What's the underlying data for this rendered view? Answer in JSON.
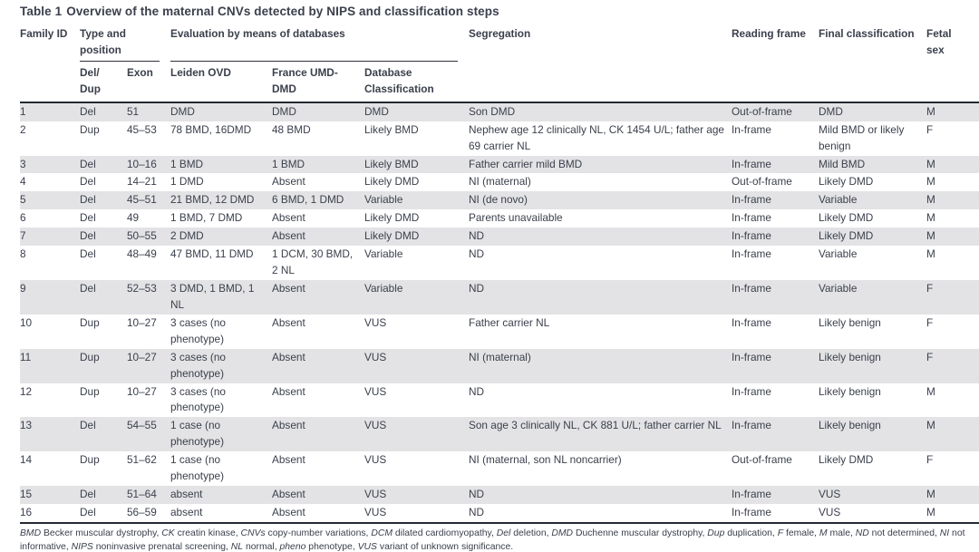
{
  "title": {
    "label": "Table 1",
    "text": "Overview of the maternal CNVs detected by NIPS and classification steps"
  },
  "columns": {
    "family_id": "Family ID",
    "type_position": "Type and position",
    "evaluation": "Evaluation by means of databases",
    "segregation": "Segregation",
    "reading_frame": "Reading frame",
    "final_classification": "Final classification",
    "fetal_sex": "Fetal sex",
    "del_dup": "Del/ Dup",
    "exon": "Exon",
    "leiden_ovd": "Leiden OVD",
    "france_umd": "France UMD-DMD",
    "db_classification": "Database Classification"
  },
  "rows": [
    {
      "family_id": "1",
      "del_dup": "Del",
      "exon": "51",
      "leiden_ovd": "DMD",
      "france_umd": "DMD",
      "db_classification": "DMD",
      "segregation": "Son DMD",
      "reading_frame": "Out-of-frame",
      "final_classification": "DMD",
      "fetal_sex": "M"
    },
    {
      "family_id": "2",
      "del_dup": "Dup",
      "exon": "45–53",
      "leiden_ovd": "78 BMD, 16DMD",
      "france_umd": "48 BMD",
      "db_classification": "Likely BMD",
      "segregation": "Nephew age 12 clinically NL, CK 1454 U/L; father age 69 carrier NL",
      "reading_frame": "In-frame",
      "final_classification": "Mild BMD or likely benign",
      "fetal_sex": "F"
    },
    {
      "family_id": "3",
      "del_dup": "Del",
      "exon": "10–16",
      "leiden_ovd": "1 BMD",
      "france_umd": "1 BMD",
      "db_classification": "Likely BMD",
      "segregation": "Father carrier mild BMD",
      "reading_frame": "In-frame",
      "final_classification": "Mild BMD",
      "fetal_sex": "M"
    },
    {
      "family_id": "4",
      "del_dup": "Del",
      "exon": "14–21",
      "leiden_ovd": "1 DMD",
      "france_umd": "Absent",
      "db_classification": "Likely DMD",
      "segregation": "NI (maternal)",
      "reading_frame": "Out-of-frame",
      "final_classification": "Likely DMD",
      "fetal_sex": "M"
    },
    {
      "family_id": "5",
      "del_dup": "Del",
      "exon": "45–51",
      "leiden_ovd": "21 BMD, 12 DMD",
      "france_umd": "6 BMD, 1 DMD",
      "db_classification": "Variable",
      "segregation": "NI (de novo)",
      "reading_frame": "In-frame",
      "final_classification": "Variable",
      "fetal_sex": "M"
    },
    {
      "family_id": "6",
      "del_dup": "Del",
      "exon": "49",
      "leiden_ovd": "1 BMD, 7 DMD",
      "france_umd": "Absent",
      "db_classification": "Likely DMD",
      "segregation": "Parents unavailable",
      "reading_frame": "In-frame",
      "final_classification": "Likely DMD",
      "fetal_sex": "M"
    },
    {
      "family_id": "7",
      "del_dup": "Del",
      "exon": "50–55",
      "leiden_ovd": "2 DMD",
      "france_umd": "Absent",
      "db_classification": "Likely DMD",
      "segregation": "ND",
      "reading_frame": "In-frame",
      "final_classification": "Likely DMD",
      "fetal_sex": "M"
    },
    {
      "family_id": "8",
      "del_dup": "Del",
      "exon": "48–49",
      "leiden_ovd": "47 BMD, 11 DMD",
      "france_umd": "1 DCM, 30 BMD, 2 NL",
      "db_classification": "Variable",
      "segregation": "ND",
      "reading_frame": "In-frame",
      "final_classification": "Variable",
      "fetal_sex": "M"
    },
    {
      "family_id": "9",
      "del_dup": "Del",
      "exon": "52–53",
      "leiden_ovd": "3 DMD, 1 BMD, 1 NL",
      "france_umd": "Absent",
      "db_classification": "Variable",
      "segregation": "ND",
      "reading_frame": "In-frame",
      "final_classification": "Variable",
      "fetal_sex": "F"
    },
    {
      "family_id": "10",
      "del_dup": "Dup",
      "exon": "10–27",
      "leiden_ovd": "3 cases (no phenotype)",
      "france_umd": "Absent",
      "db_classification": "VUS",
      "segregation": "Father carrier NL",
      "reading_frame": "In-frame",
      "final_classification": "Likely benign",
      "fetal_sex": "F"
    },
    {
      "family_id": "11",
      "del_dup": "Dup",
      "exon": "10–27",
      "leiden_ovd": "3 cases (no phenotype)",
      "france_umd": "Absent",
      "db_classification": "VUS",
      "segregation": "NI (maternal)",
      "reading_frame": "In-frame",
      "final_classification": "Likely benign",
      "fetal_sex": "F"
    },
    {
      "family_id": "12",
      "del_dup": "Dup",
      "exon": "10–27",
      "leiden_ovd": "3 cases (no phenotype)",
      "france_umd": "Absent",
      "db_classification": "VUS",
      "segregation": "ND",
      "reading_frame": "In-frame",
      "final_classification": "Likely benign",
      "fetal_sex": "M"
    },
    {
      "family_id": "13",
      "del_dup": "Del",
      "exon": "54–55",
      "leiden_ovd": "1 case (no phenotype)",
      "france_umd": "Absent",
      "db_classification": "VUS",
      "segregation": "Son age 3 clinically NL, CK 881 U/L; father carrier NL",
      "reading_frame": "In-frame",
      "final_classification": "Likely benign",
      "fetal_sex": "M"
    },
    {
      "family_id": "14",
      "del_dup": "Dup",
      "exon": "51–62",
      "leiden_ovd": "1 case (no phenotype)",
      "france_umd": "Absent",
      "db_classification": "VUS",
      "segregation": "NI (maternal, son NL noncarrier)",
      "reading_frame": "Out-of-frame",
      "final_classification": "Likely DMD",
      "fetal_sex": "F"
    },
    {
      "family_id": "15",
      "del_dup": "Del",
      "exon": "51–64",
      "leiden_ovd": "absent",
      "france_umd": "Absent",
      "db_classification": "VUS",
      "segregation": "ND",
      "reading_frame": "In-frame",
      "final_classification": "VUS",
      "fetal_sex": "M"
    },
    {
      "family_id": "16",
      "del_dup": "Del",
      "exon": "56–59",
      "leiden_ovd": "absent",
      "france_umd": "Absent",
      "db_classification": "VUS",
      "segregation": "ND",
      "reading_frame": "In-frame",
      "final_classification": "VUS",
      "fetal_sex": "M"
    }
  ],
  "footnote": {
    "abbreviations": [
      {
        "term": "BMD",
        "desc": "Becker muscular dystrophy"
      },
      {
        "term": "CK",
        "desc": "creatin kinase"
      },
      {
        "term": "CNVs",
        "desc": "copy-number variations"
      },
      {
        "term": "DCM",
        "desc": "dilated cardiomyopathy"
      },
      {
        "term": "Del",
        "desc": "deletion"
      },
      {
        "term": "DMD",
        "desc": "Duchenne muscular dystrophy"
      },
      {
        "term": "Dup",
        "desc": "duplication"
      },
      {
        "term": "F",
        "desc": "female"
      },
      {
        "term": "M",
        "desc": "male"
      },
      {
        "term": "ND",
        "desc": "not determined"
      },
      {
        "term": "NI",
        "desc": "not informative"
      },
      {
        "term": "NIPS",
        "desc": "noninvasive prenatal screening"
      },
      {
        "term": "NL",
        "desc": "normal"
      },
      {
        "term": "pheno",
        "desc": "phenotype"
      },
      {
        "term": "VUS",
        "desc": "variant of unknown significance"
      }
    ],
    "suffix": "."
  },
  "colors": {
    "text": "#3b404c",
    "rule_dark": "#262a33",
    "row_shade": "#e3e3e5"
  }
}
